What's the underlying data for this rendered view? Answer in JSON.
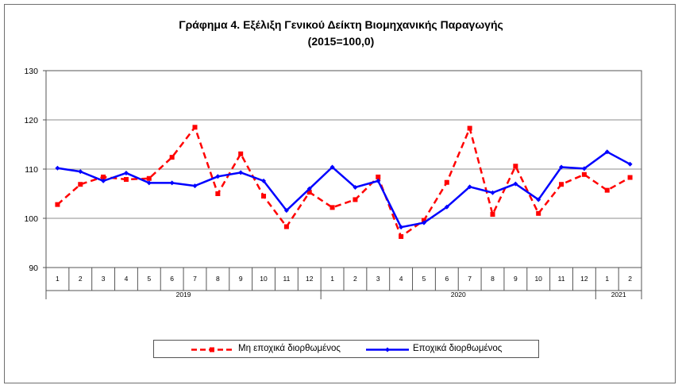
{
  "chart_data": {
    "type": "line",
    "title": "Γράφημα 4. Εξέλιξη Γενικού Δείκτη Βιομηχανικής Παραγωγής",
    "subtitle": "(2015=100,0)",
    "ylim": [
      90,
      130
    ],
    "yticks": [
      "90",
      "100",
      "110",
      "120",
      "130"
    ],
    "grid": true,
    "legend_position": "bottom",
    "categories": [
      "1",
      "2",
      "3",
      "4",
      "5",
      "6",
      "7",
      "8",
      "9",
      "10",
      "11",
      "12",
      "1",
      "2",
      "3",
      "4",
      "5",
      "6",
      "7",
      "8",
      "9",
      "10",
      "11",
      "12",
      "1",
      "2"
    ],
    "year_groups": [
      {
        "label": "2019",
        "count": 12
      },
      {
        "label": "2020",
        "count": 12
      },
      {
        "label": "2021",
        "count": 2
      }
    ],
    "series": [
      {
        "name": "Μη εποχικά διορθωμένος",
        "color": "#ff0000",
        "dashed": true,
        "marker": "square",
        "values": [
          102.8,
          106.9,
          108.4,
          107.9,
          108.1,
          112.4,
          118.5,
          105.0,
          113.1,
          104.5,
          98.3,
          105.3,
          102.2,
          103.8,
          108.4,
          96.3,
          99.6,
          107.3,
          118.3,
          100.8,
          110.6,
          101.0,
          106.9,
          108.9,
          105.7,
          108.3
        ]
      },
      {
        "name": "Εποχικά διορθωμένος",
        "color": "#0000ff",
        "dashed": false,
        "marker": "diamond",
        "values": [
          110.2,
          109.5,
          107.6,
          109.2,
          107.2,
          107.2,
          106.6,
          108.5,
          109.3,
          107.6,
          101.6,
          106.0,
          110.4,
          106.3,
          107.6,
          98.2,
          99.1,
          102.3,
          106.4,
          105.2,
          107.0,
          103.8,
          110.4,
          110.1,
          113.5,
          111.0
        ]
      }
    ]
  }
}
